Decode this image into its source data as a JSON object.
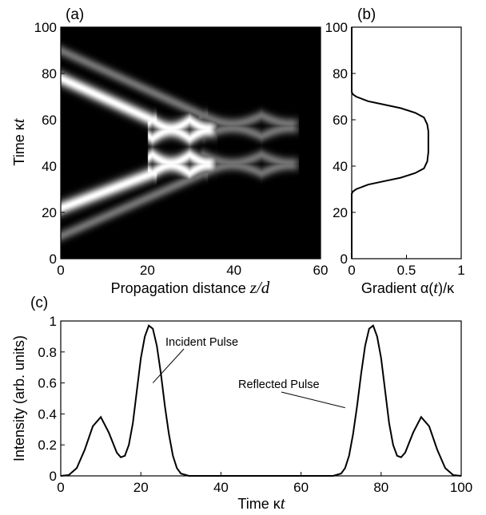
{
  "chart_data": [
    {
      "panel": "(a)",
      "type": "heatmap",
      "xlabel": "Propagation distance z/d",
      "ylabel": "Time κt",
      "xlim": [
        0,
        60
      ],
      "ylim": [
        0,
        100
      ],
      "xticks": [
        "0",
        "20",
        "40",
        "60"
      ],
      "yticks": [
        "0",
        "20",
        "40",
        "60",
        "80",
        "100"
      ],
      "colormap": "grayscale (black = 0, white = max)",
      "features": {
        "incident_main_peak_t": 22,
        "incident_side_peak_t": 10,
        "reflected_main_peak_t": 78,
        "reflected_side_peak_t": 90,
        "main_turning_z": 34,
        "side_turning_z": 53,
        "main_oscillation_t": [
          37,
          45,
          52,
          60
        ],
        "side_oscillation_t": [
          37,
          45,
          53,
          62
        ]
      }
    },
    {
      "panel": "(b)",
      "type": "line",
      "xlabel": "Gradient α(t)/κ",
      "ylabel": "",
      "xlim": [
        0,
        1
      ],
      "ylim": [
        0,
        100
      ],
      "xticks": [
        "0",
        "0.5",
        "1"
      ],
      "yticks": [
        "0",
        "20",
        "40",
        "60",
        "80",
        "100"
      ],
      "series": [
        {
          "x": [
            0,
            0,
            0,
            0.01,
            0.04,
            0.15,
            0.3,
            0.45,
            0.58,
            0.66,
            0.69,
            0.7,
            0.7,
            0.69,
            0.66,
            0.58,
            0.45,
            0.3,
            0.15,
            0.04,
            0.01,
            0,
            0
          ],
          "y": [
            0,
            20,
            28,
            29,
            30,
            32,
            33.5,
            35,
            37,
            39,
            42,
            46,
            55,
            58,
            61,
            63,
            65,
            66.5,
            68,
            70,
            71,
            72,
            100
          ]
        }
      ]
    },
    {
      "panel": "(c)",
      "type": "line",
      "xlabel": "Time κt",
      "ylabel": "Intensity (arb. units)",
      "xlim": [
        0,
        100
      ],
      "ylim": [
        0,
        1
      ],
      "xticks": [
        "0",
        "20",
        "40",
        "60",
        "80",
        "100"
      ],
      "yticks": [
        "0",
        "0.2",
        "0.4",
        "0.6",
        "0.8",
        "1"
      ],
      "annotations": [
        {
          "text": "Incident Pulse",
          "x": 23,
          "y": 0.6
        },
        {
          "text": "Reflected Pulse",
          "x": 71,
          "y": 0.44
        }
      ],
      "series": [
        {
          "x": [
            0,
            2,
            4,
            6,
            8,
            10,
            12,
            14,
            15,
            16,
            17,
            18,
            19,
            20,
            21,
            22,
            23,
            24,
            25,
            26,
            27,
            28,
            29,
            30,
            32,
            40,
            60,
            68,
            70,
            71,
            72,
            73,
            74,
            75,
            76,
            77,
            78,
            79,
            80,
            81,
            82,
            83,
            84,
            85,
            86,
            88,
            90,
            92,
            94,
            96,
            98,
            100
          ],
          "y": [
            0,
            0.005,
            0.05,
            0.17,
            0.32,
            0.38,
            0.28,
            0.15,
            0.12,
            0.13,
            0.2,
            0.34,
            0.55,
            0.76,
            0.9,
            0.97,
            0.95,
            0.84,
            0.66,
            0.45,
            0.27,
            0.13,
            0.05,
            0.015,
            0,
            0,
            0,
            0,
            0.015,
            0.05,
            0.13,
            0.27,
            0.45,
            0.66,
            0.84,
            0.95,
            0.97,
            0.9,
            0.76,
            0.55,
            0.34,
            0.2,
            0.13,
            0.12,
            0.15,
            0.28,
            0.38,
            0.32,
            0.17,
            0.05,
            0.005,
            0
          ]
        }
      ]
    }
  ]
}
